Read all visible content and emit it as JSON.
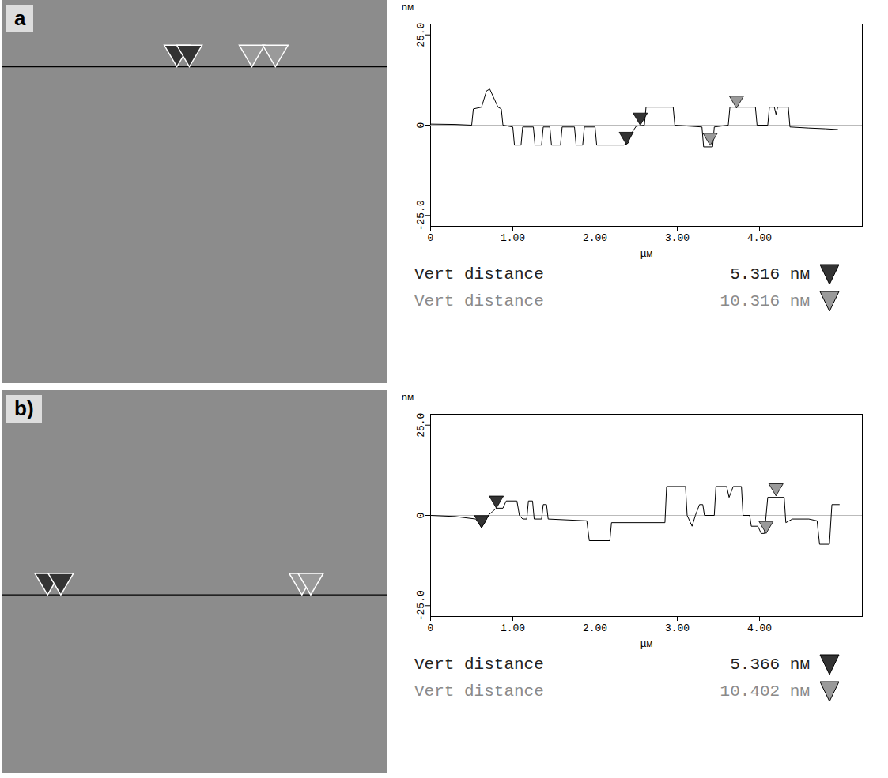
{
  "chart_data": [
    {
      "type": "line",
      "panel": "a",
      "color": "#000000",
      "x_label": "μм",
      "y_label": "nм",
      "xlim": [
        0,
        5.25
      ],
      "ylim": [
        -28,
        28
      ],
      "xticks": [
        0,
        {
          "value": 1,
          "label": "1.00"
        },
        {
          "value": 2,
          "label": "2.00"
        },
        {
          "value": 3,
          "label": "3.00"
        },
        {
          "value": 4,
          "label": "4.00"
        }
      ],
      "yticks": [
        {
          "value": -25,
          "label": "-25.0"
        },
        0,
        {
          "value": 25,
          "label": "25.0"
        }
      ],
      "scan_y": 0.91,
      "x": [
        0,
        0.3,
        0.5,
        0.52,
        0.62,
        0.68,
        0.72,
        0.78,
        0.82,
        0.86,
        0.88,
        1.0,
        1.02,
        1.1,
        1.12,
        1.25,
        1.27,
        1.35,
        1.37,
        1.45,
        1.47,
        1.58,
        1.6,
        1.75,
        1.77,
        1.85,
        1.87,
        2.0,
        2.02,
        2.35,
        2.4,
        2.45,
        2.5,
        2.6,
        2.62,
        2.95,
        2.97,
        3.3,
        3.32,
        3.43,
        3.45,
        3.62,
        3.64,
        3.95,
        3.97,
        4.1,
        4.12,
        4.18,
        4.2,
        4.22,
        4.35,
        4.37,
        4.6,
        4.8,
        4.95
      ],
      "values": [
        0.3,
        0.2,
        0,
        4.5,
        5,
        9.5,
        10,
        7,
        5,
        4.5,
        0,
        -0.5,
        -5.5,
        -5.5,
        -0.5,
        -0.5,
        -5.5,
        -5.5,
        -0.5,
        -0.5,
        -5.5,
        -5.5,
        -0.5,
        -0.5,
        -5.5,
        -5.5,
        -0.5,
        -0.5,
        -5.5,
        -5.5,
        -5,
        -2,
        -0.3,
        0,
        5,
        5,
        0,
        -0.5,
        -6,
        -6,
        -0.5,
        0,
        5,
        5,
        0,
        0,
        5,
        5,
        3,
        5,
        5,
        -0.5,
        -0.8,
        -1,
        -1.2
      ],
      "cursors": [
        {
          "color": "#333333",
          "marker": "triangle-down",
          "x": [
            2.38,
            2.55
          ],
          "y": [
            -5.3,
            0.0
          ],
          "readout": {
            "label": "Vert distance",
            "text": "5.316 nм"
          }
        },
        {
          "color": "#9a9a9a",
          "marker": "triangle-down",
          "x": [
            3.4,
            3.72
          ],
          "y": [
            -5.6,
            4.7
          ],
          "readout": {
            "label": "Vert distance",
            "text": "10.316 nм"
          }
        }
      ]
    },
    {
      "type": "line",
      "panel": "b)",
      "color": "#000000",
      "x_label": "μм",
      "y_label": "nм",
      "xlim": [
        0,
        5.25
      ],
      "ylim": [
        -28,
        28
      ],
      "xticks": [
        0,
        {
          "value": 1,
          "label": "1.00"
        },
        {
          "value": 2,
          "label": "2.00"
        },
        {
          "value": 3,
          "label": "3.00"
        },
        {
          "value": 4,
          "label": "4.00"
        }
      ],
      "yticks": [
        {
          "value": -25,
          "label": "-25.0"
        },
        0,
        {
          "value": 25,
          "label": "25.0"
        }
      ],
      "scan_y": 2.8,
      "x": [
        0,
        0.3,
        0.55,
        0.58,
        0.62,
        0.66,
        0.7,
        0.75,
        0.8,
        0.88,
        0.92,
        1.05,
        1.08,
        1.12,
        1.17,
        1.19,
        1.24,
        1.26,
        1.35,
        1.37,
        1.41,
        1.43,
        1.9,
        1.93,
        2.18,
        2.2,
        2.85,
        2.87,
        3.1,
        3.12,
        3.18,
        3.22,
        3.27,
        3.31,
        3.33,
        3.45,
        3.47,
        3.6,
        3.63,
        3.68,
        3.78,
        3.8,
        3.88,
        3.9,
        3.98,
        4.02,
        4.06,
        4.1,
        4.3,
        4.32,
        4.4,
        4.6,
        4.7,
        4.73,
        4.85,
        4.88,
        4.97
      ],
      "values": [
        0,
        -0.3,
        -1,
        -2,
        -3.4,
        -2,
        0,
        1,
        2,
        2,
        4,
        4,
        0,
        -1,
        -1,
        4,
        4,
        -1,
        -1,
        3,
        3,
        -1,
        -1.5,
        -7,
        -7,
        -2,
        -2,
        8,
        8,
        0,
        -3,
        0,
        3,
        3,
        0,
        0,
        8,
        8,
        5,
        8,
        8,
        0,
        0,
        -3,
        -3,
        -5,
        -5,
        5,
        5,
        -2,
        -1,
        -1,
        -1.5,
        -8,
        -8,
        3,
        3
      ],
      "cursors": [
        {
          "color": "#333333",
          "marker": "triangle-down",
          "x": [
            0.62,
            0.8
          ],
          "y": [
            -3.4,
            2.0
          ],
          "readout": {
            "label": "Vert distance",
            "text": "5.366 nм"
          }
        },
        {
          "color": "#9a9a9a",
          "marker": "triangle-down",
          "x": [
            4.08,
            4.2
          ],
          "y": [
            -5.0,
            5.4
          ],
          "readout": {
            "label": "Vert distance",
            "text": "10.402 nм"
          }
        }
      ]
    }
  ]
}
